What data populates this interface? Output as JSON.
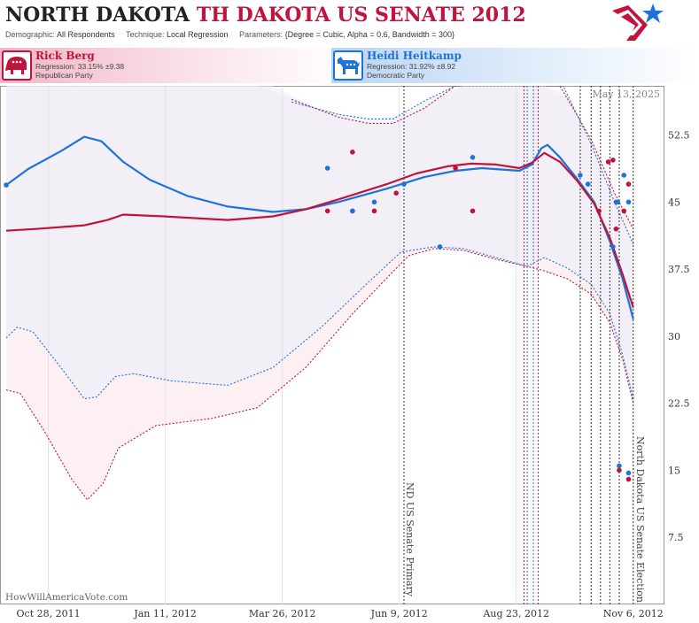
{
  "header": {
    "title_part1": "NORTH DAKOTA",
    "title_part2": "TH DAKOTA US SENATE 2012",
    "demographic_label": "Demographic:",
    "demographic": "All Respondents",
    "technique_label": "Technique:",
    "technique": "Local Regression",
    "parameters_label": "Parameters:",
    "parameters": "{Degree = Cubic, Alpha = 0.6, Bandwidth = 300}"
  },
  "candidates": {
    "rep": {
      "name": "Rick Berg",
      "regression": "Regression: 33.15% ±9.38",
      "party": "Republican Party",
      "color": "#c0143c"
    },
    "dem": {
      "name": "Heidi Heitkamp",
      "regression": "Regression: 31.92% ±8.92",
      "party": "Democratic Party",
      "color": "#1e73d8"
    }
  },
  "chart_data": {
    "type": "line",
    "date_stamp": "May 13, 2025",
    "watermark": "HowWillAmericaVote.com",
    "x_ticks": [
      "Oct 28, 2011",
      "Jan 11, 2012",
      "Mar 26, 2012",
      "Jun 9, 2012",
      "Aug 23, 2012",
      "Nov 6, 2012"
    ],
    "x_range": [
      "2011-09-27",
      "2012-11-26"
    ],
    "y_range": [
      0,
      58
    ],
    "y_ticks": [
      7.5,
      15,
      22.5,
      30,
      37.5,
      45,
      52.5
    ],
    "annotations": [
      {
        "date": "2012-06-12",
        "label": "ND US Senate Primary"
      },
      {
        "date": "2012-11-06",
        "label": "North Dakota US Senate Election"
      }
    ],
    "event_lines": [
      {
        "date": "2012-08-28",
        "color": "#c0143c"
      },
      {
        "date": "2012-08-30",
        "color": "#1e73d8"
      },
      {
        "date": "2012-09-03",
        "color": "#1e73d8"
      },
      {
        "date": "2012-09-06",
        "color": "#c0143c"
      },
      {
        "date": "2012-10-03",
        "color": "#333333"
      },
      {
        "date": "2012-10-10",
        "color": "#333333"
      },
      {
        "date": "2012-10-16",
        "color": "#333333"
      },
      {
        "date": "2012-10-22",
        "color": "#333333"
      },
      {
        "date": "2012-10-28",
        "color": "#333333"
      }
    ],
    "series": [
      {
        "name": "Rick Berg",
        "color": "#c0143c",
        "trend": [
          [
            "2011-10-01",
            41.8
          ],
          [
            "2011-10-20",
            42.0
          ],
          [
            "2011-11-20",
            42.4
          ],
          [
            "2011-12-05",
            43.0
          ],
          [
            "2011-12-15",
            43.6
          ],
          [
            "2012-01-10",
            43.4
          ],
          [
            "2012-02-20",
            43.0
          ],
          [
            "2012-03-20",
            43.4
          ],
          [
            "2012-04-10",
            44.2
          ],
          [
            "2012-05-01",
            45.3
          ],
          [
            "2012-06-01",
            47.0
          ],
          [
            "2012-06-20",
            48.2
          ],
          [
            "2012-07-10",
            49.0
          ],
          [
            "2012-07-25",
            49.3
          ],
          [
            "2012-08-10",
            49.2
          ],
          [
            "2012-08-25",
            48.8
          ],
          [
            "2012-09-02",
            49.4
          ],
          [
            "2012-09-10",
            50.5
          ],
          [
            "2012-09-20",
            49.5
          ],
          [
            "2012-10-01",
            47.4
          ],
          [
            "2012-10-12",
            44.8
          ],
          [
            "2012-10-22",
            41.0
          ],
          [
            "2012-10-30",
            37.0
          ],
          [
            "2012-11-06",
            33.2
          ]
        ],
        "upper": [
          [
            "2012-04-01",
            56.5
          ],
          [
            "2012-05-01",
            54.5
          ],
          [
            "2012-05-20",
            53.8
          ],
          [
            "2012-06-05",
            53.8
          ],
          [
            "2012-06-25",
            55.5
          ],
          [
            "2012-07-15",
            58.0
          ],
          [
            "2012-09-20",
            58.0
          ],
          [
            "2012-10-10",
            52.0
          ],
          [
            "2012-10-25",
            46.0
          ],
          [
            "2012-11-06",
            42.0
          ]
        ],
        "lower": [
          [
            "2011-10-01",
            24.0
          ],
          [
            "2011-10-10",
            23.6
          ],
          [
            "2011-10-25",
            19.5
          ],
          [
            "2011-11-12",
            14.0
          ],
          [
            "2011-11-22",
            11.7
          ],
          [
            "2011-12-02",
            13.5
          ],
          [
            "2011-12-12",
            17.5
          ],
          [
            "2012-01-05",
            20.0
          ],
          [
            "2012-02-10",
            20.8
          ],
          [
            "2012-03-10",
            22.0
          ],
          [
            "2012-04-10",
            26.5
          ],
          [
            "2012-05-10",
            32.5
          ],
          [
            "2012-06-01",
            36.5
          ],
          [
            "2012-06-15",
            39.0
          ],
          [
            "2012-07-01",
            39.8
          ],
          [
            "2012-07-20",
            39.6
          ],
          [
            "2012-08-10",
            38.6
          ],
          [
            "2012-08-30",
            37.8
          ],
          [
            "2012-09-10",
            37.3
          ],
          [
            "2012-09-25",
            36.4
          ],
          [
            "2012-10-10",
            34.7
          ],
          [
            "2012-10-22",
            31.5
          ],
          [
            "2012-10-30",
            27.5
          ],
          [
            "2012-11-06",
            22.5
          ]
        ],
        "polls": [
          [
            "2012-04-24",
            44.0
          ],
          [
            "2012-05-10",
            50.6
          ],
          [
            "2012-05-10",
            44.0
          ],
          [
            "2012-05-24",
            44.0
          ],
          [
            "2012-06-07",
            46.0
          ],
          [
            "2012-07-15",
            48.8
          ],
          [
            "2012-07-26",
            44.0
          ],
          [
            "2012-10-15",
            44.0
          ],
          [
            "2012-10-21",
            49.5
          ],
          [
            "2012-10-24",
            49.7
          ],
          [
            "2012-10-26",
            42.0
          ],
          [
            "2012-10-28",
            15.0
          ],
          [
            "2012-10-31",
            44.0
          ],
          [
            "2012-11-03",
            47.0
          ],
          [
            "2012-11-03",
            14.0
          ]
        ]
      },
      {
        "name": "Heidi Heitkamp",
        "color": "#1e73d8",
        "trend": [
          [
            "2011-10-01",
            46.9
          ],
          [
            "2011-10-15",
            48.7
          ],
          [
            "2011-11-05",
            50.7
          ],
          [
            "2011-11-20",
            52.3
          ],
          [
            "2011-12-01",
            51.8
          ],
          [
            "2011-12-15",
            49.5
          ],
          [
            "2012-01-01",
            47.5
          ],
          [
            "2012-01-25",
            45.7
          ],
          [
            "2012-02-20",
            44.5
          ],
          [
            "2012-03-20",
            43.9
          ],
          [
            "2012-04-10",
            44.2
          ],
          [
            "2012-05-01",
            45.0
          ],
          [
            "2012-06-01",
            46.5
          ],
          [
            "2012-06-25",
            47.8
          ],
          [
            "2012-07-15",
            48.5
          ],
          [
            "2012-08-01",
            48.8
          ],
          [
            "2012-08-25",
            48.5
          ],
          [
            "2012-09-02",
            49.2
          ],
          [
            "2012-09-08",
            51.0
          ],
          [
            "2012-09-12",
            51.4
          ],
          [
            "2012-09-20",
            50.0
          ],
          [
            "2012-10-01",
            47.6
          ],
          [
            "2012-10-12",
            45.0
          ],
          [
            "2012-10-22",
            40.6
          ],
          [
            "2012-10-30",
            36.5
          ],
          [
            "2012-11-06",
            31.9
          ]
        ],
        "upper": [
          [
            "2012-04-01",
            56.2
          ],
          [
            "2012-05-01",
            54.8
          ],
          [
            "2012-05-20",
            54.3
          ],
          [
            "2012-06-05",
            54.3
          ],
          [
            "2012-06-25",
            56.3
          ],
          [
            "2012-07-15",
            58.0
          ],
          [
            "2012-09-22",
            58.0
          ],
          [
            "2012-10-10",
            51.5
          ],
          [
            "2012-10-25",
            45.0
          ],
          [
            "2012-11-06",
            40.3
          ]
        ],
        "lower": [
          [
            "2011-10-01",
            29.8
          ],
          [
            "2011-10-08",
            31.0
          ],
          [
            "2011-10-18",
            30.5
          ],
          [
            "2011-11-05",
            26.5
          ],
          [
            "2011-11-20",
            23.0
          ],
          [
            "2011-11-28",
            23.2
          ],
          [
            "2011-12-10",
            25.5
          ],
          [
            "2011-12-22",
            25.8
          ],
          [
            "2012-01-15",
            25.0
          ],
          [
            "2012-02-20",
            24.5
          ],
          [
            "2012-03-20",
            26.5
          ],
          [
            "2012-04-20",
            31.0
          ],
          [
            "2012-05-20",
            36.0
          ],
          [
            "2012-06-10",
            39.4
          ],
          [
            "2012-07-01",
            40.0
          ],
          [
            "2012-07-20",
            39.8
          ],
          [
            "2012-08-10",
            38.8
          ],
          [
            "2012-08-30",
            37.8
          ],
          [
            "2012-09-10",
            38.8
          ],
          [
            "2012-09-25",
            37.6
          ],
          [
            "2012-10-10",
            35.8
          ],
          [
            "2012-10-22",
            32.5
          ],
          [
            "2012-10-30",
            28.0
          ],
          [
            "2012-11-06",
            23.0
          ]
        ],
        "polls": [
          [
            "2011-10-01",
            46.9
          ],
          [
            "2012-04-24",
            48.8
          ],
          [
            "2012-05-10",
            44.0
          ],
          [
            "2012-05-24",
            45.0
          ],
          [
            "2012-06-12",
            47.0
          ],
          [
            "2012-07-05",
            40.0
          ],
          [
            "2012-07-26",
            50.0
          ],
          [
            "2012-10-03",
            48.0
          ],
          [
            "2012-10-08",
            47.0
          ],
          [
            "2012-10-24",
            40.0
          ],
          [
            "2012-10-26",
            45.0
          ],
          [
            "2012-10-27",
            45.0
          ],
          [
            "2012-10-28",
            15.5
          ],
          [
            "2012-10-31",
            48.0
          ],
          [
            "2012-11-03",
            45.0
          ],
          [
            "2012-11-03",
            14.7
          ]
        ]
      }
    ]
  }
}
